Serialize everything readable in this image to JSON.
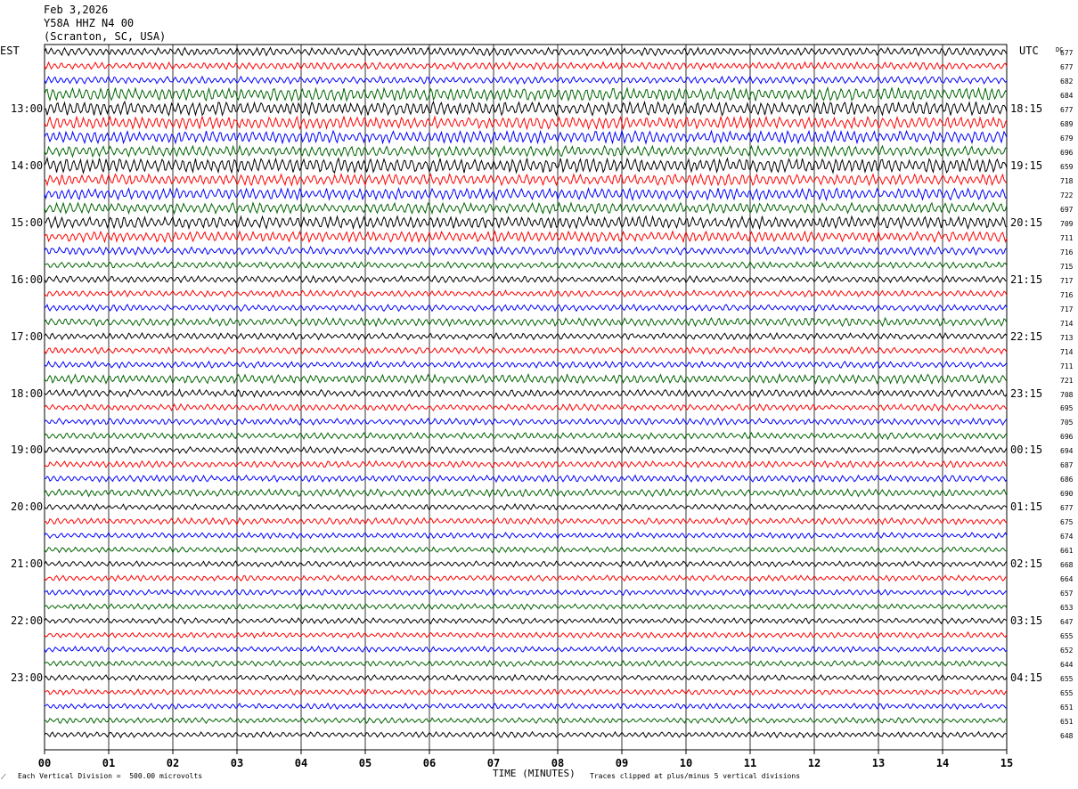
{
  "header": {
    "date": "Feb 3,2026",
    "station": "Y58A HHZ N4 00",
    "location": "(Scranton, SC, USA)"
  },
  "left_label": "EST",
  "right_label": "UTC",
  "dc_label": "DC",
  "footer": {
    "scale": "Each Vertical Division =  500.00 microvolts",
    "xlabel": "TIME (MINUTES)",
    "clip_note": "Traces clipped at plus/minus 5 vertical divisions"
  },
  "colors": {
    "trace_cycle": [
      "#000000",
      "#ff0000",
      "#0000ff",
      "#006400"
    ],
    "grid": "#000000"
  },
  "chart_data": {
    "type": "line",
    "title": "Y58A HHZ N4 00",
    "xlabel": "TIME (MINUTES)",
    "x_ticks": [
      "00",
      "01",
      "02",
      "03",
      "04",
      "05",
      "06",
      "07",
      "08",
      "09",
      "10",
      "11",
      "12",
      "13",
      "14",
      "15"
    ],
    "xlim": [
      0,
      15
    ],
    "rows_per_hour": 4,
    "est_hour_labels": [
      {
        "row": 4,
        "label": "13:00"
      },
      {
        "row": 8,
        "label": "14:00"
      },
      {
        "row": 12,
        "label": "15:00"
      },
      {
        "row": 16,
        "label": "16:00"
      },
      {
        "row": 20,
        "label": "17:00"
      },
      {
        "row": 24,
        "label": "18:00"
      },
      {
        "row": 28,
        "label": "19:00"
      },
      {
        "row": 32,
        "label": "20:00"
      },
      {
        "row": 36,
        "label": "21:00"
      },
      {
        "row": 40,
        "label": "22:00"
      },
      {
        "row": 44,
        "label": "23:00"
      }
    ],
    "utc_labels": [
      {
        "row": 4,
        "label": "18:15"
      },
      {
        "row": 8,
        "label": "19:15"
      },
      {
        "row": 12,
        "label": "20:15"
      },
      {
        "row": 16,
        "label": "21:15"
      },
      {
        "row": 20,
        "label": "22:15"
      },
      {
        "row": 24,
        "label": "23:15"
      },
      {
        "row": 28,
        "label": "00:15"
      },
      {
        "row": 32,
        "label": "01:15"
      },
      {
        "row": 36,
        "label": "02:15"
      },
      {
        "row": 40,
        "label": "03:15"
      },
      {
        "row": 44,
        "label": "04:15"
      }
    ],
    "dc_offsets": [
      677,
      677,
      682,
      684,
      677,
      689,
      679,
      696,
      659,
      718,
      722,
      697,
      709,
      711,
      716,
      715,
      717,
      716,
      717,
      714,
      713,
      714,
      711,
      721,
      708,
      695,
      705,
      696,
      694,
      687,
      686,
      690,
      677,
      675,
      674,
      661,
      668,
      664,
      657,
      653,
      647,
      655,
      652,
      644,
      655,
      655,
      651,
      651,
      648
    ],
    "trace_activity": [
      1.0,
      0.9,
      0.9,
      1.6,
      1.7,
      1.5,
      1.5,
      1.3,
      1.8,
      1.4,
      1.4,
      1.3,
      1.5,
      1.3,
      1.0,
      0.8,
      0.8,
      0.8,
      0.8,
      1.0,
      0.8,
      0.8,
      0.8,
      1.1,
      0.9,
      0.8,
      0.8,
      0.8,
      0.8,
      0.8,
      0.8,
      0.9,
      0.7,
      0.8,
      0.7,
      0.7,
      0.7,
      0.7,
      0.7,
      0.7,
      0.7,
      0.7,
      0.7,
      0.7,
      0.7,
      0.7,
      0.7,
      0.7,
      0.7
    ]
  }
}
